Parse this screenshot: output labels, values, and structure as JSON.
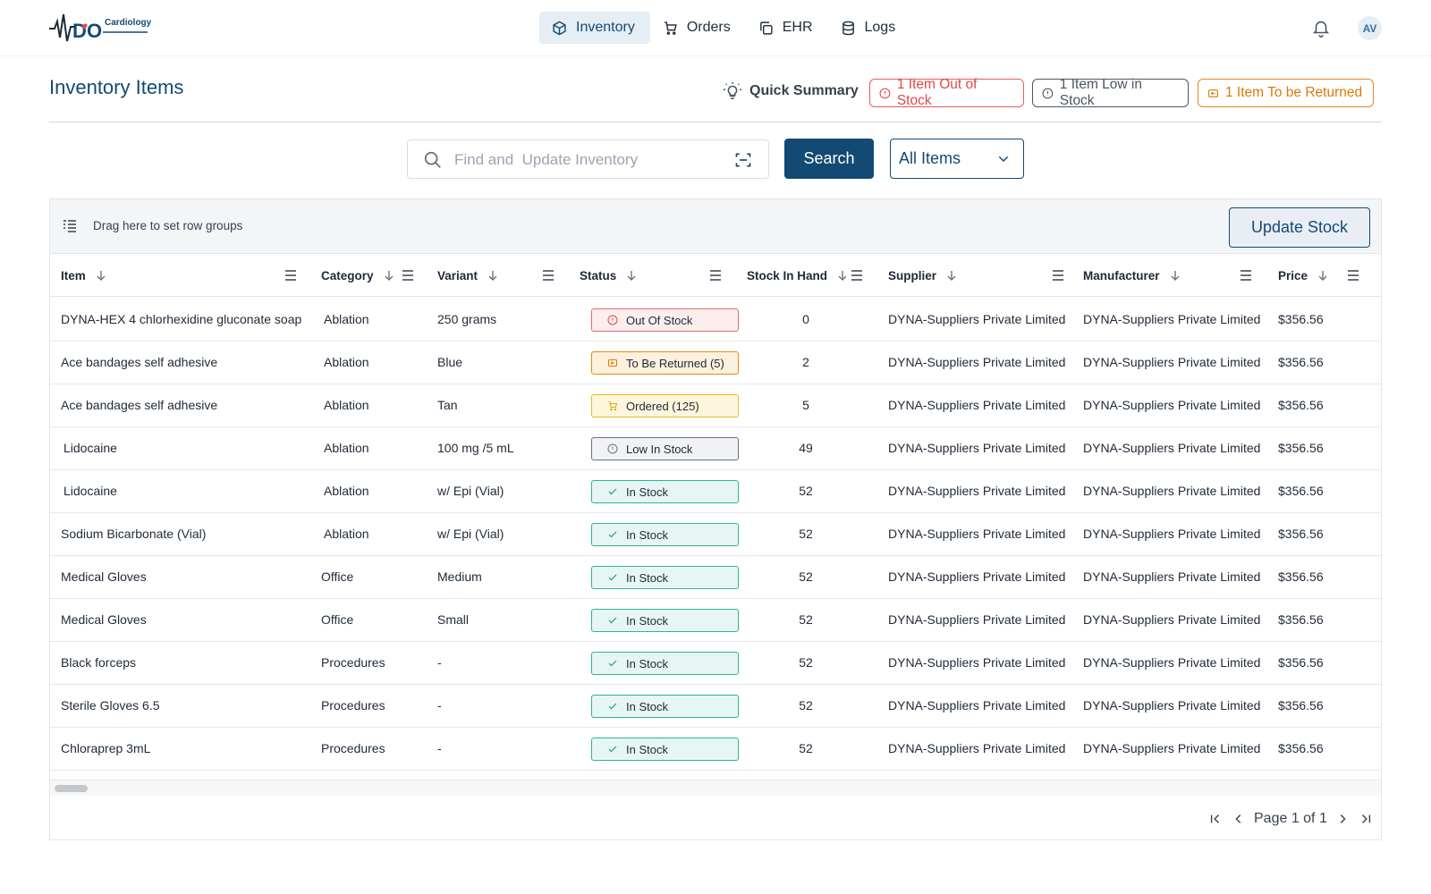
{
  "app": {
    "brand_small": "Cardiology",
    "avatar_initials": "AV"
  },
  "nav": {
    "items": [
      {
        "label": "Inventory",
        "icon": "box-icon",
        "active": true
      },
      {
        "label": "Orders",
        "icon": "cart-icon",
        "active": false
      },
      {
        "label": "EHR",
        "icon": "copy-icon",
        "active": false
      },
      {
        "label": "Logs",
        "icon": "database-icon",
        "active": false
      }
    ]
  },
  "header": {
    "title": "Inventory Items",
    "quick_summary": "Quick Summary",
    "pills": {
      "out_of_stock": "1 Item Out of Stock",
      "low_in_stock": "1 Item Low in Stock",
      "to_be_returned": "1 Item To be Returned"
    }
  },
  "search": {
    "placeholder": "Find and  Update Inventory",
    "button": "Search",
    "filter_value": "All Items"
  },
  "grid": {
    "group_hint": "Drag here to set row groups",
    "update_button": "Update Stock",
    "columns": [
      "Item",
      "Category",
      "Variant",
      "Status",
      "Stock In Hand",
      "Supplier",
      "Manufacturer",
      "Price"
    ],
    "rows": [
      {
        "item": "DYNA-HEX 4 chlorhexidine gluconate soap",
        "category": "Ablation",
        "variant": "250 grams",
        "status": "Out Of Stock",
        "status_kind": "out",
        "stock": "0",
        "supplier": "DYNA-Suppliers Private Limited",
        "manufacturer": "DYNA-Suppliers Private Limited",
        "price": "$356.56"
      },
      {
        "item": "Ace bandages self adhesive",
        "category": "Ablation",
        "variant": "Blue",
        "status": "To Be Returned (5)",
        "status_kind": "ret",
        "stock": "2",
        "supplier": "DYNA-Suppliers Private Limited",
        "manufacturer": "DYNA-Suppliers Private Limited",
        "price": "$356.56"
      },
      {
        "item": "Ace bandages self adhesive",
        "category": "Ablation",
        "variant": "Tan",
        "status": "Ordered (125)",
        "status_kind": "ord",
        "stock": "5",
        "supplier": "DYNA-Suppliers Private Limited",
        "manufacturer": "DYNA-Suppliers Private Limited",
        "price": "$356.56"
      },
      {
        "item": "Lidocaine",
        "category": "Ablation",
        "variant": "100 mg /5 mL",
        "status": "Low In Stock",
        "status_kind": "low",
        "stock": "49",
        "supplier": "DYNA-Suppliers Private Limited",
        "manufacturer": "DYNA-Suppliers Private Limited",
        "price": "$356.56"
      },
      {
        "item": "Lidocaine",
        "category": "Ablation",
        "variant": "w/ Epi (Vial)",
        "status": "In Stock",
        "status_kind": "in",
        "stock": "52",
        "supplier": "DYNA-Suppliers Private Limited",
        "manufacturer": "DYNA-Suppliers Private Limited",
        "price": "$356.56"
      },
      {
        "item": "Sodium Bicarbonate (Vial)",
        "category": "Ablation",
        "variant": "w/ Epi (Vial)",
        "status": "In Stock",
        "status_kind": "in",
        "stock": "52",
        "supplier": "DYNA-Suppliers Private Limited",
        "manufacturer": "DYNA-Suppliers Private Limited",
        "price": "$356.56"
      },
      {
        "item": "Medical Gloves",
        "category": "Office",
        "variant": "Medium",
        "status": "In Stock",
        "status_kind": "in",
        "stock": "52",
        "supplier": "DYNA-Suppliers Private Limited",
        "manufacturer": "DYNA-Suppliers Private Limited",
        "price": "$356.56"
      },
      {
        "item": "Medical Gloves",
        "category": "Office",
        "variant": "Small",
        "status": "In Stock",
        "status_kind": "in",
        "stock": "52",
        "supplier": "DYNA-Suppliers Private Limited",
        "manufacturer": "DYNA-Suppliers Private Limited",
        "price": "$356.56"
      },
      {
        "item": "Black forceps",
        "category": "Procedures",
        "variant": "-",
        "status": "In Stock",
        "status_kind": "in",
        "stock": "52",
        "supplier": "DYNA-Suppliers Private Limited",
        "manufacturer": "DYNA-Suppliers Private Limited",
        "price": "$356.56"
      },
      {
        "item": "Sterile Gloves 6.5",
        "category": "Procedures",
        "variant": "-",
        "status": "In Stock",
        "status_kind": "in",
        "stock": "52",
        "supplier": "DYNA-Suppliers Private Limited",
        "manufacturer": "DYNA-Suppliers Private Limited",
        "price": "$356.56"
      },
      {
        "item": "Chloraprep 3mL",
        "category": "Procedures",
        "variant": "-",
        "status": "In Stock",
        "status_kind": "in",
        "stock": "52",
        "supplier": "DYNA-Suppliers Private Limited",
        "manufacturer": "DYNA-Suppliers Private Limited",
        "price": "$356.56"
      }
    ]
  },
  "pager": {
    "label": "Page 1 of 1"
  },
  "colors": {
    "primary": "#134a73",
    "out": "#e86a6a",
    "return": "#e08a1e",
    "ordered": "#e8b930",
    "low": "#6b7280",
    "in_stock": "#2bb39a"
  }
}
